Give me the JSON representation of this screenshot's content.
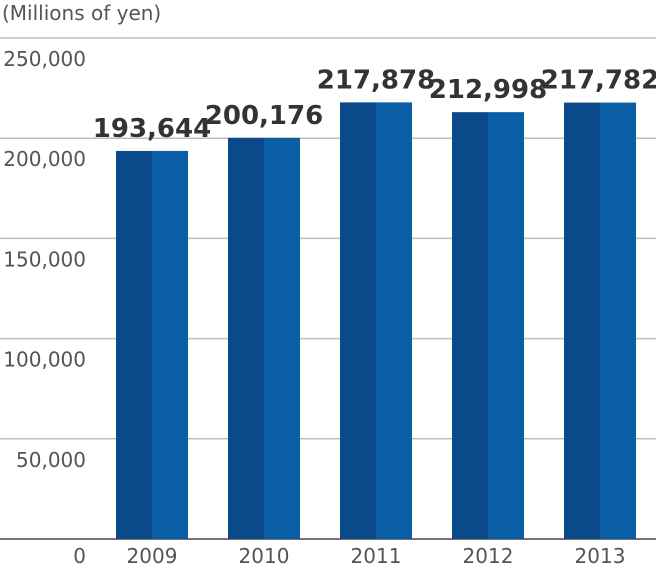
{
  "chart_data": {
    "type": "bar",
    "title": "",
    "unit_label": "(Millions of yen)",
    "xlabel": "",
    "ylabel": "",
    "categories": [
      "2009",
      "2010",
      "2011",
      "2012",
      "2013"
    ],
    "values": [
      193644,
      200176,
      217878,
      212998,
      217782
    ],
    "data_labels": [
      "193,644",
      "200,176",
      "217,878",
      "212,998",
      "217,782"
    ],
    "y_ticks": [
      0,
      50000,
      100000,
      150000,
      200000,
      250000
    ],
    "y_tick_labels": [
      "0",
      "50,000",
      "100,000",
      "150,000",
      "200,000",
      "250,000"
    ],
    "ylim": [
      0,
      250000
    ],
    "grid": true,
    "legend": "none",
    "colors": {
      "bar_dark": "#0a4a8a",
      "bar_light": "#0a5fa6",
      "grid": "#bdbdbd",
      "axis": "#777777"
    }
  }
}
